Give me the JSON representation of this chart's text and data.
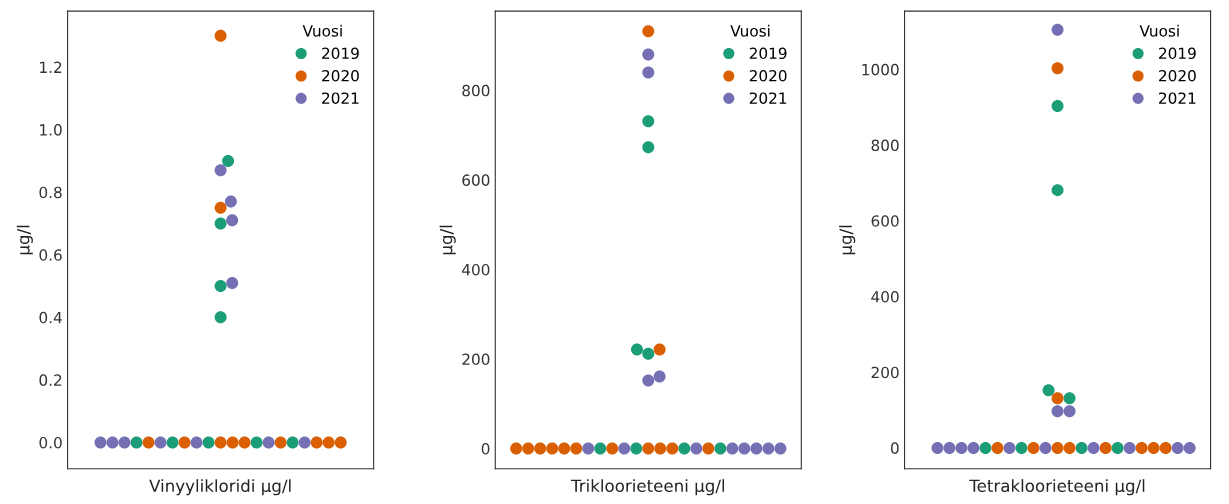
{
  "chart_data": [
    {
      "type": "scatter",
      "categories": [
        null
      ],
      "xlabel": "Vinyylikloridi µg/l",
      "ylabel": "µg/l",
      "legend_title": "Vuosi",
      "legend": "top right",
      "grid": false,
      "marker": "circle",
      "ylim": [
        -0.084,
        1.379
      ],
      "yticks": [
        {
          "value": 0,
          "label": "0.0"
        },
        {
          "value": 0.2,
          "label": "0.2"
        },
        {
          "value": 0.4,
          "label": "0.4"
        },
        {
          "value": 0.6,
          "label": "0.6"
        },
        {
          "value": 0.8,
          "label": "0.8"
        },
        {
          "value": 1.0,
          "label": "1.0"
        },
        {
          "value": 1.2,
          "label": "1.2"
        }
      ],
      "series": [
        {
          "name": "2019",
          "color": "#1b9e77",
          "x": [
            null,
            null,
            null,
            null,
            null,
            null,
            null,
            null,
            null
          ],
          "values": [
            0.9,
            0.7,
            0.5,
            0.4,
            0,
            0,
            0,
            0,
            0
          ]
        },
        {
          "name": "2020",
          "color": "#d95f02",
          "x": [
            null,
            null,
            null,
            null,
            null,
            null,
            null,
            null,
            null,
            null,
            null
          ],
          "values": [
            1.3,
            0.75,
            0,
            0,
            0,
            0,
            0,
            0,
            0,
            0,
            0
          ]
        },
        {
          "name": "2021",
          "color": "#7570b3",
          "x": [
            null,
            null,
            null,
            null,
            null,
            null,
            null,
            null,
            null,
            null,
            null
          ],
          "values": [
            0.87,
            0.77,
            0.71,
            0.51,
            0,
            0,
            0,
            0,
            0,
            0,
            0
          ]
        }
      ]
    },
    {
      "type": "scatter",
      "categories": [
        null
      ],
      "xlabel": "Trikloorieteeni µg/l",
      "ylabel": "µg/l",
      "legend_title": "Vuosi",
      "legend": "top right",
      "grid": false,
      "marker": "circle",
      "ylim": [
        -45,
        977
      ],
      "yticks": [
        {
          "value": 0,
          "label": "0"
        },
        {
          "value": 200,
          "label": "200"
        },
        {
          "value": 400,
          "label": "400"
        },
        {
          "value": 600,
          "label": "600"
        },
        {
          "value": 800,
          "label": "800"
        }
      ],
      "series": [
        {
          "name": "2019",
          "color": "#1b9e77",
          "x": [
            null,
            null,
            null,
            null,
            null,
            null,
            null,
            null
          ],
          "values": [
            731,
            673,
            221,
            212,
            0,
            0,
            0,
            0
          ]
        },
        {
          "name": "2020",
          "color": "#d95f02",
          "x": [
            null,
            null,
            null,
            null,
            null,
            null,
            null,
            null,
            null,
            null,
            null,
            null,
            null
          ],
          "values": [
            932,
            221,
            0,
            0,
            0,
            0,
            0,
            0,
            0,
            0,
            0,
            0,
            0
          ]
        },
        {
          "name": "2021",
          "color": "#7570b3",
          "x": [
            null,
            null,
            null,
            null,
            null,
            null,
            null,
            null,
            null,
            null,
            null,
            null
          ],
          "values": [
            880,
            840,
            161,
            152,
            0,
            0,
            0,
            0,
            0,
            0,
            0,
            0
          ]
        }
      ]
    },
    {
      "type": "scatter",
      "categories": [
        null
      ],
      "xlabel": "Tetrakloorieteeni µg/l",
      "ylabel": "µg/l",
      "legend_title": "Vuosi",
      "legend": "top right",
      "grid": false,
      "marker": "circle",
      "ylim": [
        -55,
        1154
      ],
      "yticks": [
        0,
        200,
        400,
        600,
        800,
        1000
      ],
      "series": [
        {
          "name": "2019",
          "color": "#1b9e77",
          "x": [
            null,
            null,
            null,
            null,
            null,
            null,
            null,
            null
          ],
          "values": [
            903,
            681,
            152,
            131,
            0,
            0,
            0,
            0
          ]
        },
        {
          "name": "2020",
          "color": "#d95f02",
          "x": [
            null,
            null,
            null,
            null,
            null,
            null,
            null,
            null,
            null,
            null
          ],
          "values": [
            1003,
            131,
            0,
            0,
            0,
            0,
            0,
            0,
            0,
            0
          ]
        },
        {
          "name": "2021",
          "color": "#7570b3",
          "x": [
            null,
            null,
            null,
            null,
            null,
            null,
            null,
            null,
            null,
            null,
            null,
            null,
            null
          ],
          "values": [
            1105,
            97,
            97,
            0,
            0,
            0,
            0,
            0,
            0,
            0,
            0,
            0,
            0
          ]
        }
      ]
    }
  ]
}
